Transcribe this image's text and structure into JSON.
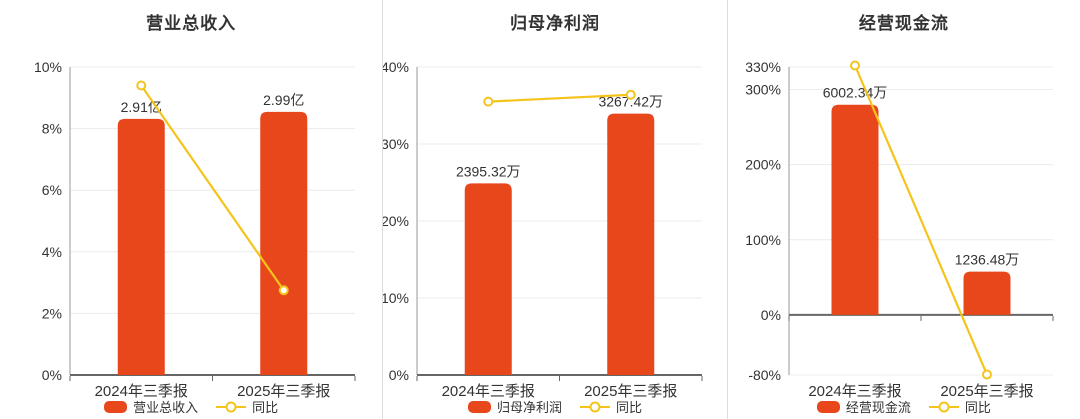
{
  "colors": {
    "bar": "#e8471c",
    "line": "#f4c41c",
    "grid": "#ececec",
    "zero_axis": "#666666",
    "y_axis": "#999999",
    "text": "#333333",
    "divider": "#dddddd",
    "background": "#ffffff"
  },
  "chart_data": [
    {
      "type": "bar+line",
      "title": "营业总收入",
      "categories": [
        "2024年三季报",
        "2025年三季报"
      ],
      "y_axis": {
        "min": 0,
        "max": 10,
        "ticks": [
          0,
          2,
          4,
          6,
          8,
          10
        ],
        "tick_labels": [
          "0%",
          "2%",
          "4%",
          "6%",
          "8%",
          "10%"
        ],
        "grid": true
      },
      "bar_series": {
        "name": "营业总收入",
        "unit": "亿",
        "values": [
          2.91,
          2.99
        ],
        "labels": [
          "2.91亿",
          "2.99亿"
        ],
        "bar_axis_max": 3.5
      },
      "line_series": {
        "name": "同比",
        "unit": "%",
        "values": [
          9.4,
          2.75
        ]
      },
      "legend_position": "bottom"
    },
    {
      "type": "bar+line",
      "title": "归母净利润",
      "categories": [
        "2024年三季报",
        "2025年三季报"
      ],
      "y_axis": {
        "min": 0,
        "max": 40,
        "ticks": [
          0,
          10,
          20,
          30,
          40
        ],
        "tick_labels": [
          "0%",
          "10%",
          "20%",
          "30%",
          "40%"
        ],
        "grid": true
      },
      "bar_series": {
        "name": "归母净利润",
        "unit": "万",
        "values": [
          2395.32,
          3267.42
        ],
        "labels": [
          "2395.32万",
          "3267.42万"
        ],
        "bar_axis_max": 3850
      },
      "line_series": {
        "name": "同比",
        "unit": "%",
        "values": [
          35.5,
          36.4
        ]
      },
      "legend_position": "bottom"
    },
    {
      "type": "bar+line",
      "title": "经营现金流",
      "categories": [
        "2024年三季报",
        "2025年三季报"
      ],
      "y_axis": {
        "min": -80,
        "max": 330,
        "ticks": [
          -80,
          0,
          100,
          200,
          300,
          330
        ],
        "tick_labels": [
          "-80%",
          "0%",
          "100%",
          "200%",
          "300%",
          "330%"
        ],
        "grid": true
      },
      "bar_series": {
        "name": "经营现金流",
        "unit": "万",
        "values": [
          6002.34,
          1236.48
        ],
        "labels": [
          "6002.34万",
          "1236.48万"
        ],
        "bar_axis_max": 7080
      },
      "line_series": {
        "name": "同比",
        "unit": "%",
        "values": [
          332,
          -79.4
        ]
      },
      "legend_position": "bottom"
    }
  ]
}
